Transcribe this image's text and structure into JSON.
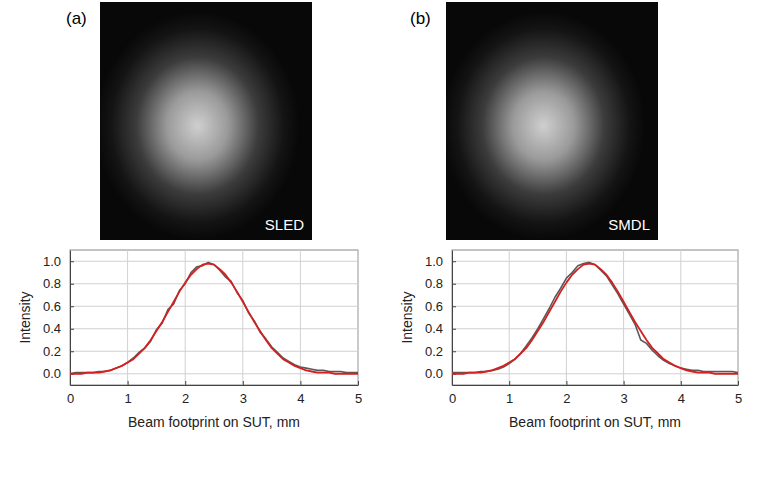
{
  "chart_data": [
    {
      "type": "line",
      "panel_label": "(a)",
      "image_label": "SLED",
      "x_label": "Beam footprint on SUT, mm",
      "y_label": "Intensity",
      "xlim": [
        0,
        5
      ],
      "ylim": [
        -0.1,
        1.1
      ],
      "xticks": [
        0,
        1,
        2,
        3,
        4,
        5
      ],
      "yticks": [
        {
          "value": 0,
          "label": "0.0"
        },
        0.2,
        0.4,
        0.6,
        0.8,
        {
          "value": 1,
          "label": "1.0"
        }
      ],
      "grid": true,
      "x": [
        0,
        0.1,
        0.2,
        0.3,
        0.4,
        0.5,
        0.6,
        0.7,
        0.8,
        0.9,
        1,
        1.1,
        1.2,
        1.3,
        1.4,
        1.5,
        1.6,
        1.7,
        1.8,
        1.9,
        2,
        2.1,
        2.2,
        2.3,
        2.4,
        2.5,
        2.6,
        2.7,
        2.8,
        2.9,
        3,
        3.1,
        3.2,
        3.3,
        3.4,
        3.5,
        3.6,
        3.7,
        3.8,
        3.9,
        4,
        4.1,
        4.2,
        4.3,
        4.4,
        4.5,
        4.6,
        4.7,
        4.8,
        4.9,
        5
      ],
      "series": [
        {
          "color": "#5a5a5a",
          "values": [
            0.0,
            0.01,
            0.01,
            0.01,
            0.01,
            0.02,
            0.02,
            0.03,
            0.05,
            0.07,
            0.1,
            0.14,
            0.19,
            0.23,
            0.29,
            0.39,
            0.45,
            0.57,
            0.62,
            0.74,
            0.8,
            0.9,
            0.95,
            0.96,
            0.99,
            0.97,
            0.92,
            0.86,
            0.82,
            0.72,
            0.65,
            0.54,
            0.47,
            0.37,
            0.31,
            0.24,
            0.19,
            0.14,
            0.11,
            0.08,
            0.06,
            0.05,
            0.04,
            0.03,
            0.03,
            0.02,
            0.02,
            0.02,
            0.01,
            0.01,
            0.01
          ]
        },
        {
          "color": "#d42020",
          "values": [
            0.0,
            0.0,
            0.0,
            0.01,
            0.01,
            0.01,
            0.02,
            0.03,
            0.05,
            0.07,
            0.1,
            0.13,
            0.18,
            0.23,
            0.3,
            0.38,
            0.46,
            0.55,
            0.64,
            0.73,
            0.81,
            0.88,
            0.93,
            0.97,
            0.98,
            0.97,
            0.93,
            0.88,
            0.81,
            0.73,
            0.64,
            0.55,
            0.46,
            0.38,
            0.3,
            0.23,
            0.18,
            0.13,
            0.1,
            0.07,
            0.05,
            0.03,
            0.02,
            0.01,
            0.01,
            0.01,
            0.0,
            0.0,
            0.0,
            0.0,
            0.0
          ]
        }
      ]
    },
    {
      "type": "line",
      "panel_label": "(b)",
      "image_label": "SMDL",
      "x_label": "Beam footprint on SUT, mm",
      "y_label": "Intensity",
      "xlim": [
        0,
        5
      ],
      "ylim": [
        -0.1,
        1.1
      ],
      "xticks": [
        0,
        1,
        2,
        3,
        4,
        5
      ],
      "yticks": [
        {
          "value": 0,
          "label": "0.0"
        },
        0.2,
        0.4,
        0.6,
        0.8,
        {
          "value": 1,
          "label": "1.0"
        }
      ],
      "grid": true,
      "x": [
        0,
        0.1,
        0.2,
        0.3,
        0.4,
        0.5,
        0.6,
        0.7,
        0.8,
        0.9,
        1,
        1.1,
        1.2,
        1.3,
        1.4,
        1.5,
        1.6,
        1.7,
        1.8,
        1.9,
        2,
        2.1,
        2.2,
        2.3,
        2.4,
        2.5,
        2.6,
        2.7,
        2.8,
        2.9,
        3,
        3.1,
        3.2,
        3.3,
        3.4,
        3.5,
        3.6,
        3.7,
        3.8,
        3.9,
        4,
        4.1,
        4.2,
        4.3,
        4.4,
        4.5,
        4.6,
        4.7,
        4.8,
        4.9,
        5
      ],
      "series": [
        {
          "color": "#5a5a5a",
          "values": [
            0.01,
            0.01,
            0.01,
            0.01,
            0.01,
            0.02,
            0.02,
            0.03,
            0.04,
            0.06,
            0.09,
            0.13,
            0.18,
            0.25,
            0.32,
            0.4,
            0.49,
            0.58,
            0.68,
            0.76,
            0.85,
            0.9,
            0.96,
            0.98,
            0.99,
            0.97,
            0.92,
            0.87,
            0.79,
            0.71,
            0.62,
            0.53,
            0.44,
            0.3,
            0.27,
            0.21,
            0.16,
            0.12,
            0.09,
            0.07,
            0.05,
            0.04,
            0.03,
            0.03,
            0.02,
            0.02,
            0.02,
            0.02,
            0.02,
            0.02,
            0.01
          ]
        },
        {
          "color": "#d42020",
          "values": [
            0.0,
            0.0,
            0.0,
            0.01,
            0.01,
            0.01,
            0.02,
            0.03,
            0.05,
            0.07,
            0.1,
            0.13,
            0.18,
            0.23,
            0.3,
            0.38,
            0.46,
            0.55,
            0.64,
            0.73,
            0.81,
            0.88,
            0.93,
            0.97,
            0.98,
            0.97,
            0.93,
            0.88,
            0.81,
            0.73,
            0.64,
            0.55,
            0.46,
            0.38,
            0.3,
            0.23,
            0.18,
            0.13,
            0.1,
            0.07,
            0.05,
            0.03,
            0.02,
            0.01,
            0.01,
            0.01,
            0.0,
            0.0,
            0.0,
            0.0,
            0.0
          ]
        }
      ]
    }
  ]
}
